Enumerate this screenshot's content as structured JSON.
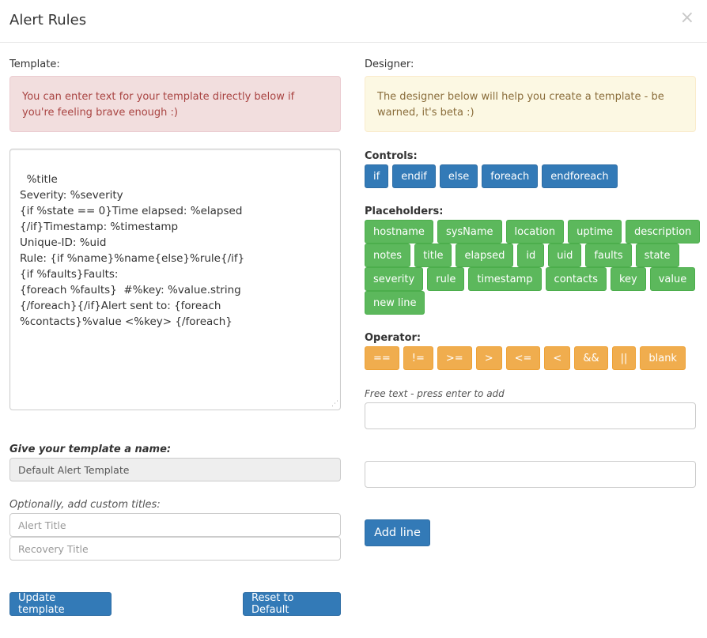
{
  "modal": {
    "title": "Alert Rules",
    "close_glyph": "×"
  },
  "template": {
    "label": "Template:",
    "alert": "You can enter text for your template directly below if you're feeling brave enough :)",
    "body": "%title\nSeverity: %severity\n{if %state == 0}Time elapsed: %elapsed\n{/if}Timestamp: %timestamp\nUnique-ID: %uid\nRule: {if %name}%name{else}%rule{/if}\n{if %faults}Faults:\n{foreach %faults}  #%key: %value.string\n{/foreach}{/if}Alert sent to: {foreach\n%contacts}%value <%key> {/foreach}",
    "name_label": "Give your template a name:",
    "name_value": "Default Alert Template",
    "titles_label": "Optionally, add custom titles:",
    "alert_title_placeholder": "Alert Title",
    "recovery_title_placeholder": "Recovery Title",
    "update_button": "Update template",
    "reset_button": "Reset to Default"
  },
  "designer": {
    "label": "Designer:",
    "alert": "The designer below will help you create a template - be warned, it's beta :)",
    "controls_label": "Controls:",
    "controls": [
      "if",
      "endif",
      "else",
      "foreach",
      "endforeach"
    ],
    "placeholders_label": "Placeholders:",
    "placeholder_rows": [
      [
        "hostname",
        "sysName",
        "location",
        "uptime",
        "description"
      ],
      [
        "notes",
        "title",
        "elapsed",
        "id",
        "uid",
        "faults",
        "state"
      ],
      [
        "severity",
        "rule",
        "timestamp",
        "contacts",
        "key",
        "value"
      ],
      [
        "new line"
      ]
    ],
    "operator_label": "Operator:",
    "operators": [
      "==",
      "!=",
      ">=",
      ">",
      "<=",
      "<",
      "&&",
      "||",
      "blank"
    ],
    "free_text_label": "Free text - press enter to add",
    "add_line_button": "Add line"
  },
  "colors": {
    "primary": "#337ab7",
    "success": "#5cb85c",
    "warning": "#f0ad4e",
    "danger_bg": "#f2dede",
    "warning_bg": "#fcf8e3"
  }
}
